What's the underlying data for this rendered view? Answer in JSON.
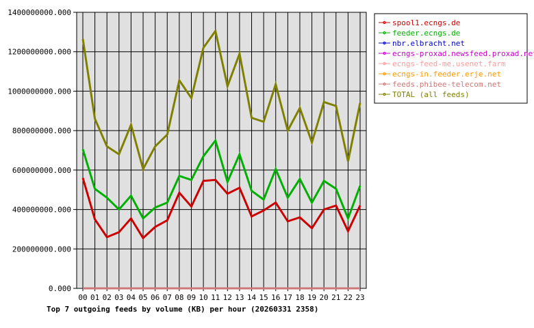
{
  "chart_data": {
    "type": "line",
    "title": "Top 7 outgoing feeds by volume (KB) per hour (20260331 2358)",
    "categories": [
      "00",
      "01",
      "02",
      "03",
      "04",
      "05",
      "06",
      "07",
      "08",
      "09",
      "10",
      "11",
      "12",
      "13",
      "14",
      "15",
      "16",
      "17",
      "18",
      "19",
      "20",
      "21",
      "22",
      "23"
    ],
    "ylim": [
      0,
      1400000000
    ],
    "yticks": [
      0,
      200000000,
      400000000,
      600000000,
      800000000,
      1000000000,
      1200000000,
      1400000000
    ],
    "ytick_labels": [
      "0.000",
      "200000000.000",
      "400000000.000",
      "600000000.000",
      "800000000.000",
      "1000000000.000",
      "1200000000.000",
      "1400000000.000"
    ],
    "grid": true,
    "legend_position": "right",
    "series": [
      {
        "name": "spool1.ecngs.de",
        "color": "#cc0000",
        "values": [
          560000000,
          350000000,
          260000000,
          285000000,
          355000000,
          255000000,
          312000000,
          345000000,
          485000000,
          415000000,
          545000000,
          550000000,
          480000000,
          510000000,
          365000000,
          395000000,
          435000000,
          340000000,
          360000000,
          305000000,
          400000000,
          420000000,
          290000000,
          420000000
        ]
      },
      {
        "name": "feeder.ecngs.de",
        "color": "#00b000",
        "values": [
          705000000,
          505000000,
          460000000,
          400000000,
          470000000,
          355000000,
          410000000,
          435000000,
          570000000,
          550000000,
          670000000,
          750000000,
          540000000,
          680000000,
          495000000,
          450000000,
          605000000,
          460000000,
          555000000,
          435000000,
          545000000,
          505000000,
          355000000,
          520000000
        ]
      },
      {
        "name": "nbr.elbracht.net",
        "color": "#0000cc",
        "values": [
          0,
          0,
          0,
          0,
          0,
          0,
          0,
          0,
          0,
          0,
          0,
          0,
          0,
          0,
          0,
          0,
          0,
          0,
          0,
          0,
          0,
          0,
          0,
          0
        ]
      },
      {
        "name": "ecngs-proxad.newsfeed.proxad.net",
        "color": "#cc00cc",
        "values": [
          0,
          0,
          0,
          0,
          0,
          0,
          0,
          0,
          0,
          0,
          0,
          0,
          0,
          0,
          0,
          0,
          0,
          0,
          0,
          0,
          0,
          0,
          0,
          0
        ]
      },
      {
        "name": "ecngs-feed-me.usenet.farm",
        "color": "#ff9999",
        "values": [
          0,
          0,
          0,
          0,
          0,
          0,
          0,
          0,
          0,
          0,
          0,
          0,
          0,
          0,
          0,
          0,
          0,
          0,
          0,
          0,
          0,
          0,
          0,
          0
        ]
      },
      {
        "name": "ecngs-in.feeder.erje.net",
        "color": "#ff9900",
        "values": [
          0,
          0,
          0,
          0,
          0,
          0,
          0,
          0,
          0,
          0,
          0,
          0,
          0,
          0,
          0,
          0,
          0,
          0,
          0,
          0,
          0,
          0,
          0,
          0
        ]
      },
      {
        "name": "feeds.phibee-telecom.net",
        "color": "#cc7777",
        "values": [
          0,
          0,
          0,
          0,
          0,
          0,
          0,
          0,
          0,
          0,
          0,
          0,
          0,
          0,
          0,
          0,
          0,
          0,
          0,
          0,
          0,
          0,
          0,
          0
        ]
      },
      {
        "name": "TOTAL (all feeds)",
        "color": "#808000",
        "values": [
          1265000000,
          860000000,
          720000000,
          680000000,
          830000000,
          605000000,
          720000000,
          780000000,
          1055000000,
          965000000,
          1220000000,
          1305000000,
          1025000000,
          1190000000,
          865000000,
          845000000,
          1035000000,
          800000000,
          915000000,
          740000000,
          945000000,
          925000000,
          645000000,
          940000000
        ]
      }
    ]
  }
}
